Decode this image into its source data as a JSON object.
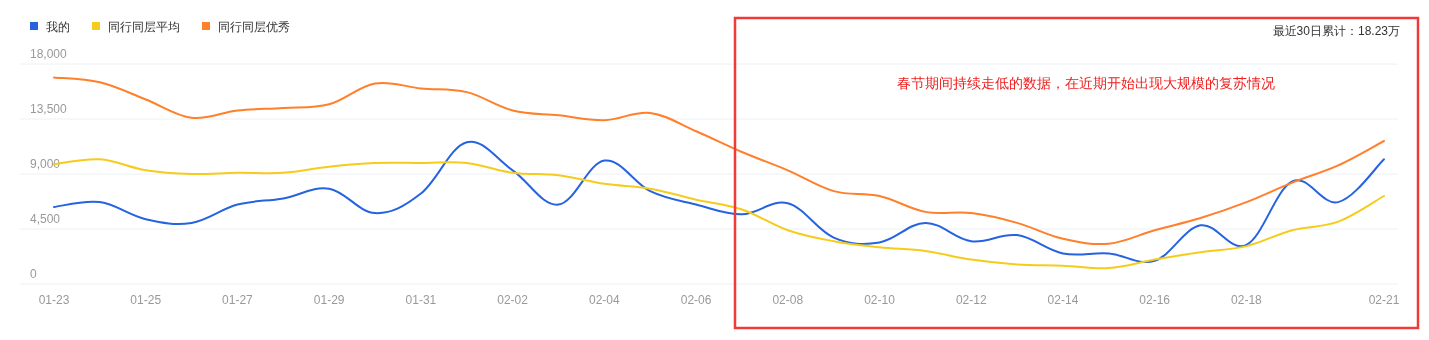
{
  "chart_data": {
    "type": "line",
    "categories": [
      "01-23",
      null,
      "01-25",
      null,
      "01-27",
      null,
      "01-29",
      null,
      "01-31",
      null,
      "02-02",
      null,
      "02-04",
      null,
      "02-06",
      null,
      "02-08",
      null,
      "02-10",
      null,
      "02-12",
      null,
      "02-14",
      null,
      "02-16",
      null,
      "02-18",
      null,
      null,
      "02-21"
    ],
    "series": [
      {
        "name": "我的",
        "color": "#2563e0",
        "values": [
          6300,
          6700,
          5300,
          5000,
          6500,
          7000,
          7800,
          5800,
          7400,
          11600,
          9300,
          6500,
          10100,
          7600,
          6500,
          5700,
          6600,
          3800,
          3400,
          5000,
          3500,
          4000,
          2500,
          2500,
          1900,
          4800,
          3200,
          8400,
          6700,
          10200
        ]
      },
      {
        "name": "同行同层平均",
        "color": "#f5cc1c",
        "values": [
          9800,
          10200,
          9300,
          9000,
          9100,
          9100,
          9600,
          9900,
          9900,
          9900,
          9100,
          8900,
          8200,
          7800,
          6900,
          6100,
          4400,
          3500,
          3000,
          2700,
          2000,
          1600,
          1500,
          1300,
          2000,
          2600,
          3100,
          4400,
          5100,
          7200
        ]
      },
      {
        "name": "同行同层优秀",
        "color": "#ff7f2a",
        "values": [
          16900,
          16500,
          15100,
          13600,
          14200,
          14400,
          14700,
          16400,
          16000,
          15700,
          14200,
          13800,
          13400,
          14000,
          12500,
          10800,
          9300,
          7600,
          7200,
          5900,
          5800,
          5000,
          3700,
          3300,
          4400,
          5400,
          6700,
          8300,
          9700,
          11700
        ]
      }
    ],
    "ylim": [
      0,
      18000
    ],
    "yticks": [
      0,
      {
        "value": 4500,
        "label": "4,500"
      },
      {
        "value": 9000,
        "label": "9,000"
      },
      {
        "value": 13500,
        "label": "13,500"
      },
      {
        "value": 18000,
        "label": "18,000"
      }
    ],
    "grid": "y",
    "legend": "top left",
    "annotations": [
      "春节期间持续走低的数据，在近期开始出现大规模的复苏情况",
      "最近30日累计：18.23万"
    ]
  }
}
